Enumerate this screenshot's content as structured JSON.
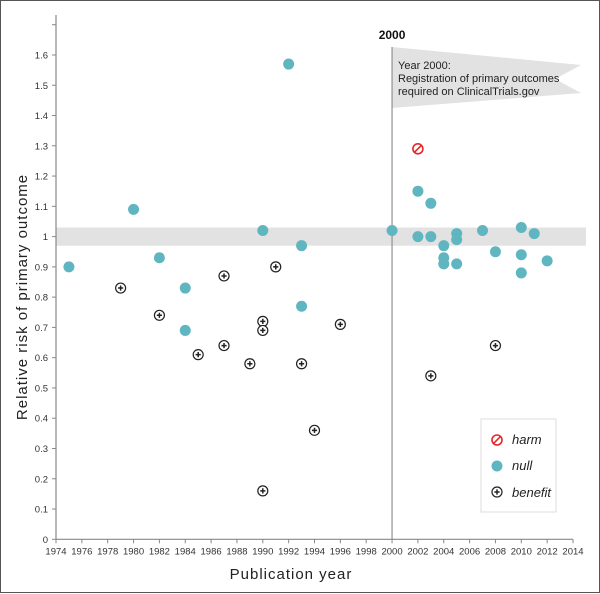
{
  "chart_data": {
    "type": "scatter",
    "xlabel": "Publication year",
    "ylabel": "Relative risk of primary outcome",
    "xlim": [
      1974,
      2014
    ],
    "ylim": [
      0,
      1.7
    ],
    "xticks": [
      "1974",
      "1976",
      "1978",
      "1980",
      "1982",
      "1984",
      "1986",
      "1988",
      "1990",
      "1992",
      "1994",
      "1996",
      "1998",
      "2000",
      "2002",
      "2004",
      "2006",
      "2008",
      "2010",
      "2012",
      "2014"
    ],
    "yticks": [
      "0",
      "0.1",
      "0.2",
      "0.3",
      "0.4",
      "0.5",
      "0.6",
      "0.7",
      "0.8",
      "0.9",
      "1",
      "1.1",
      "1.2",
      "1.3",
      "1.4",
      "1.5",
      "1.6"
    ],
    "null_band": [
      0.97,
      1.03
    ],
    "vline": {
      "x": 2000,
      "label": "2000"
    },
    "annotation": [
      "Year 2000:",
      "Registration of primary outcomes",
      "required on ClinicalTrials.gov"
    ],
    "legend": {
      "position": "bottom-right",
      "entries": [
        "harm",
        "null",
        "benefit"
      ]
    },
    "colors": {
      "harm": "#e8262a",
      "null": "#5fb6c1",
      "benefit": "#222222",
      "band": "#e2e2e2"
    },
    "series": [
      {
        "name": "harm",
        "points": [
          [
            2002,
            1.29
          ]
        ]
      },
      {
        "name": "null",
        "points": [
          [
            1975,
            0.9
          ],
          [
            1980,
            1.09
          ],
          [
            1982,
            0.93
          ],
          [
            1984,
            0.83
          ],
          [
            1984,
            0.69
          ],
          [
            1990,
            1.02
          ],
          [
            1992,
            1.57
          ],
          [
            1993,
            0.97
          ],
          [
            1993,
            0.77
          ],
          [
            2000,
            1.02
          ],
          [
            2002,
            1.15
          ],
          [
            2002,
            1.0
          ],
          [
            2003,
            1.11
          ],
          [
            2003,
            1.0
          ],
          [
            2004,
            0.97
          ],
          [
            2004,
            0.93
          ],
          [
            2004,
            0.91
          ],
          [
            2005,
            1.01
          ],
          [
            2005,
            0.99
          ],
          [
            2005,
            0.91
          ],
          [
            2007,
            1.02
          ],
          [
            2008,
            0.95
          ],
          [
            2010,
            1.03
          ],
          [
            2010,
            0.94
          ],
          [
            2010,
            0.88
          ],
          [
            2011,
            1.01
          ],
          [
            2012,
            0.92
          ]
        ]
      },
      {
        "name": "benefit",
        "points": [
          [
            1979,
            0.83
          ],
          [
            1982,
            0.74
          ],
          [
            1985,
            0.61
          ],
          [
            1987,
            0.87
          ],
          [
            1987,
            0.64
          ],
          [
            1989,
            0.58
          ],
          [
            1990,
            0.72
          ],
          [
            1990,
            0.69
          ],
          [
            1990,
            0.16
          ],
          [
            1991,
            0.9
          ],
          [
            1993,
            0.58
          ],
          [
            1994,
            0.36
          ],
          [
            1996,
            0.71
          ],
          [
            2003,
            0.54
          ],
          [
            2008,
            0.64
          ]
        ]
      }
    ]
  }
}
